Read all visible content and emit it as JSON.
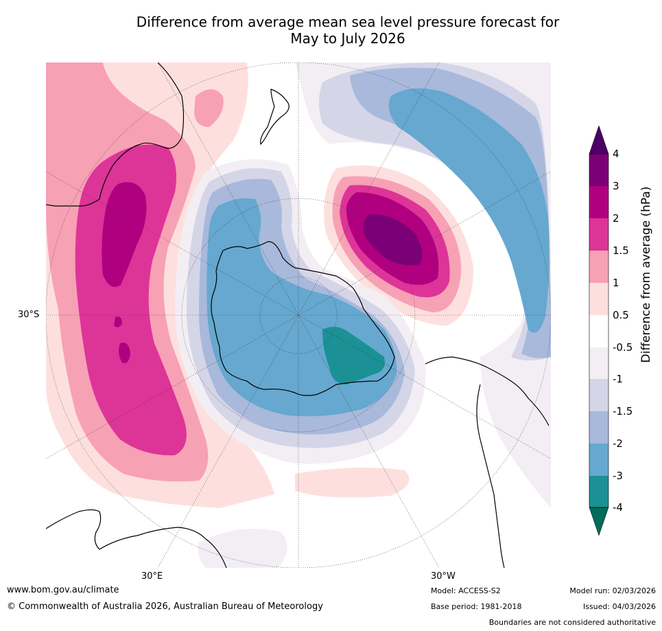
{
  "title_line1": "Difference from average mean sea level pressure forecast for",
  "title_line2": "May to July 2026",
  "map": {
    "projection": "south-polar",
    "lat_labels": [
      "30°S"
    ],
    "lon_labels": [
      "30°E",
      "30°W"
    ]
  },
  "colorbar": {
    "title": "Difference from average (hPa)",
    "levels": [
      "4",
      "3",
      "2",
      "1.5",
      "1",
      "0.5",
      "-0.5",
      "-1",
      "-1.5",
      "-2",
      "-3",
      "-4"
    ],
    "colors": [
      "#4b0066",
      "#7b0077",
      "#b0007f",
      "#dd3498",
      "#f7a1b5",
      "#fde0de",
      "#ffffff",
      "#f2eef4",
      "#d5d5e8",
      "#a8b9db",
      "#66a8cf",
      "#1b9196",
      "#006b5a"
    ]
  },
  "footer": {
    "website": "www.bom.gov.au/climate",
    "copyright": "© Commonwealth of Australia 2026, Australian Bureau of Meteorology",
    "model": "Model: ACCESS-S2",
    "base_period": "Base period: 1981-2018",
    "model_run": "Model run: 02/03/2026",
    "issued": "Issued: 04/03/2026",
    "disclaimer": "Boundaries are not considered authoritative"
  }
}
